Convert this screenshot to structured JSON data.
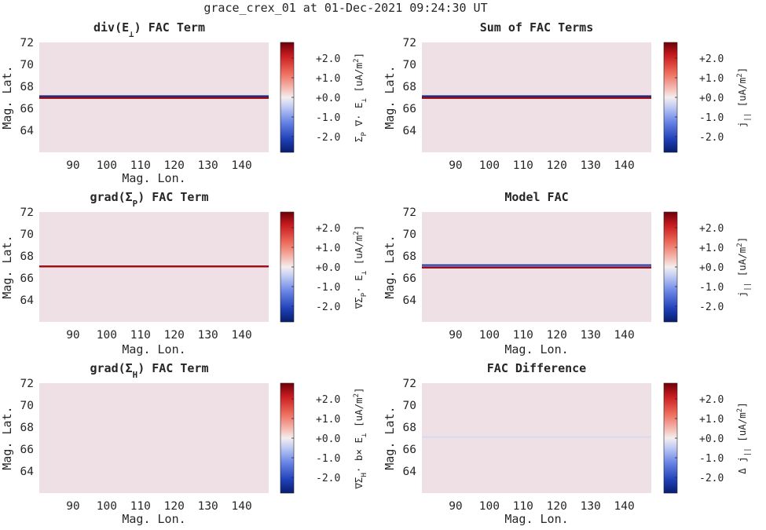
{
  "figure_title": "grace_crex_01 at 01-Dec-2021 09:24:30 UT",
  "colors": {
    "background_field": "#eee0e4",
    "positive": "#8c0f14",
    "negative": "#2536a6"
  },
  "chart_data": [
    {
      "type": "heatmap",
      "title": "div(E⊥) FAC Term",
      "title_parts": {
        "main": "div(E",
        "sub": "⊥",
        "post": ") FAC Term"
      },
      "xlabel": "Mag. Lon.",
      "ylabel": "Mag. Lat.",
      "xlim": [
        80,
        148
      ],
      "ylim": [
        62,
        72
      ],
      "xticks": [
        90,
        100,
        110,
        120,
        130,
        140
      ],
      "yticks": [
        64,
        66,
        68,
        70,
        72
      ],
      "colorbar": {
        "label": "Σ_P ∇· E_⊥ [uA/m²]",
        "label_parts": [
          "Σ",
          "P",
          " ∇· E",
          "⊥",
          " [uA/m",
          "2",
          "]"
        ],
        "ticks": [
          "+2.0",
          "+1.0",
          "+0.0",
          "-1.0",
          "-2.0"
        ],
        "tick_values": [
          2,
          1,
          0,
          -1,
          -2
        ],
        "range": [
          -2.8,
          2.8
        ]
      },
      "bands": [
        {
          "lat": 67.1,
          "value": -2.5
        },
        {
          "lat": 66.95,
          "value": 2.5
        }
      ]
    },
    {
      "type": "heatmap",
      "title": "Sum of FAC Terms",
      "xlabel": "",
      "ylabel": "Mag. Lat.",
      "xlim": [
        80,
        148
      ],
      "ylim": [
        62,
        72
      ],
      "xticks": [
        90,
        100,
        110,
        120,
        130,
        140
      ],
      "yticks": [
        64,
        66,
        68,
        70,
        72
      ],
      "colorbar": {
        "label": "j|| [uA/m²]",
        "label_parts": [
          "j",
          "||",
          " [uA/m",
          "2",
          "]"
        ],
        "ticks": [
          "+2.0",
          "+1.0",
          "+0.0",
          "-1.0",
          "-2.0"
        ],
        "tick_values": [
          2,
          1,
          0,
          -1,
          -2
        ],
        "range": [
          -2.8,
          2.8
        ]
      },
      "bands": [
        {
          "lat": 67.1,
          "value": -2.5
        },
        {
          "lat": 66.95,
          "value": 2.5
        }
      ]
    },
    {
      "type": "heatmap",
      "title": "grad(ΣP) FAC Term",
      "title_parts": {
        "main": "grad(Σ",
        "sub": "P",
        "post": ") FAC Term"
      },
      "xlabel": "Mag. Lon.",
      "ylabel": "Mag. Lat.",
      "xlim": [
        80,
        148
      ],
      "ylim": [
        62,
        72
      ],
      "xticks": [
        90,
        100,
        110,
        120,
        130,
        140
      ],
      "yticks": [
        64,
        66,
        68,
        70,
        72
      ],
      "colorbar": {
        "label": "∇ΣP· E⊥ [uA/m²]",
        "label_parts": [
          "∇Σ",
          "P",
          "· E",
          "⊥",
          " [uA/m",
          "2",
          "]"
        ],
        "ticks": [
          "+2.0",
          "+1.0",
          "+0.0",
          "-1.0",
          "-2.0"
        ],
        "tick_values": [
          2,
          1,
          0,
          -1,
          -2
        ],
        "range": [
          -2.8,
          2.8
        ]
      },
      "bands": [
        {
          "lat": 67.05,
          "value": 2.5
        }
      ]
    },
    {
      "type": "heatmap",
      "title": "Model FAC",
      "xlabel": "Mag. Lon.",
      "ylabel": "Mag. Lat.",
      "xlim": [
        80,
        148
      ],
      "ylim": [
        62,
        72
      ],
      "xticks": [
        90,
        100,
        110,
        120,
        130,
        140
      ],
      "yticks": [
        64,
        66,
        68,
        70,
        72
      ],
      "colorbar": {
        "label": "j|| [uA/m²]",
        "label_parts": [
          "j",
          "||",
          " [uA/m",
          "2",
          "]"
        ],
        "ticks": [
          "+2.0",
          "+1.0",
          "+0.0",
          "-1.0",
          "-2.0"
        ],
        "tick_values": [
          2,
          1,
          0,
          -1,
          -2
        ],
        "range": [
          -2.8,
          2.8
        ]
      },
      "bands": [
        {
          "lat": 67.15,
          "value": -2.5
        },
        {
          "lat": 67.05,
          "value": -1.2
        },
        {
          "lat": 66.95,
          "value": 2.5
        }
      ]
    },
    {
      "type": "heatmap",
      "title": "grad(ΣH) FAC Term",
      "title_parts": {
        "main": "grad(Σ",
        "sub": "H",
        "post": ") FAC Term"
      },
      "xlabel": "Mag. Lon.",
      "ylabel": "Mag. Lat.",
      "xlim": [
        80,
        148
      ],
      "ylim": [
        62,
        72
      ],
      "xticks": [
        90,
        100,
        110,
        120,
        130,
        140
      ],
      "yticks": [
        64,
        66,
        68,
        70,
        72
      ],
      "colorbar": {
        "label": "∇ΣH· b× E⊥ [uA/m²]",
        "label_parts": [
          "∇Σ",
          "H",
          "· b× E",
          "⊥",
          " [uA/m",
          "2",
          "]"
        ],
        "ticks": [
          "+2.0",
          "+1.0",
          "+0.0",
          "-1.0",
          "-2.0"
        ],
        "tick_values": [
          2,
          1,
          0,
          -1,
          -2
        ],
        "range": [
          -2.8,
          2.8
        ]
      },
      "bands": []
    },
    {
      "type": "heatmap",
      "title": "FAC Difference",
      "xlabel": "Mag. Lon.",
      "ylabel": "Mag. Lat.",
      "xlim": [
        80,
        148
      ],
      "ylim": [
        62,
        72
      ],
      "xticks": [
        90,
        100,
        110,
        120,
        130,
        140
      ],
      "yticks": [
        64,
        66,
        68,
        70,
        72
      ],
      "colorbar": {
        "label": "Δ j|| [uA/m²]",
        "label_parts": [
          "Δ j",
          "||",
          " [uA/m",
          "2",
          "]"
        ],
        "ticks": [
          "+2.0",
          "+1.0",
          "+0.0",
          "-1.0",
          "-2.0"
        ],
        "tick_values": [
          2,
          1,
          0,
          -1,
          -2
        ],
        "range": [
          -2.8,
          2.8
        ]
      },
      "bands": [
        {
          "lat": 67.1,
          "value": -0.25
        }
      ]
    }
  ]
}
